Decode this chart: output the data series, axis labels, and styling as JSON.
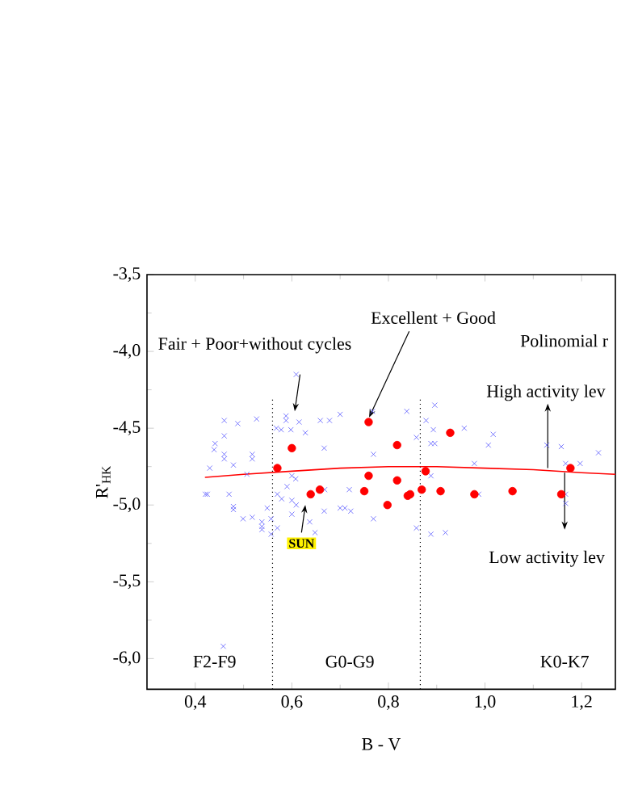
{
  "chart_data": {
    "type": "scatter",
    "xlabel": "B - V",
    "ylabel": "R'$_{HK}$",
    "xlim": [
      0.3,
      1.27
    ],
    "ylim": [
      -6.2,
      -3.5
    ],
    "xticks": [
      {
        "value": 0.4,
        "label": "0,4"
      },
      {
        "value": 0.6,
        "label": "0,6"
      },
      {
        "value": 0.8,
        "label": "0,8"
      },
      {
        "value": 1.0,
        "label": "1,0"
      },
      {
        "value": 1.2,
        "label": "1,2"
      }
    ],
    "yticks": [
      {
        "value": -6.0,
        "label": "-6,0"
      },
      {
        "value": -5.5,
        "label": "-5,5"
      },
      {
        "value": -5.0,
        "label": "-5,0"
      },
      {
        "value": -4.5,
        "label": "-4,5"
      },
      {
        "value": -4.0,
        "label": "-4,0"
      },
      {
        "value": -3.5,
        "label": "-3,5"
      }
    ],
    "grid": false,
    "series": [
      {
        "marker": "cross",
        "color": "#5a5aff",
        "x": [
          0.609,
          0.46,
          0.527,
          0.488,
          0.588,
          0.588,
          0.568,
          0.578,
          0.598,
          0.615,
          0.628,
          0.659,
          0.678,
          0.46,
          0.441,
          0.439,
          0.46,
          0.46,
          0.479,
          0.518,
          0.518,
          0.43,
          0.507,
          0.667,
          0.6,
          0.608,
          0.421,
          0.425,
          0.47,
          0.57,
          0.59,
          0.668,
          0.479,
          0.479,
          0.499,
          0.518,
          0.538,
          0.538,
          0.538,
          0.549,
          0.557,
          0.557,
          0.57,
          0.579,
          0.6,
          0.609,
          0.6,
          0.637,
          0.648,
          0.667,
          0.458,
          0.7,
          0.767,
          0.838,
          0.896,
          0.878,
          0.893,
          0.957,
          1.017,
          0.858,
          0.888,
          0.896,
          1.007,
          0.769,
          0.978,
          1.128,
          1.158,
          1.235,
          1.167,
          1.197,
          0.888,
          0.719,
          0.987,
          1.167,
          0.7,
          0.71,
          0.722,
          0.769,
          0.858,
          0.888,
          0.918,
          1.167
        ],
        "values": [
          -4.15,
          -4.45,
          -4.44,
          -4.47,
          -4.42,
          -4.45,
          -4.5,
          -4.51,
          -4.51,
          -4.46,
          -4.53,
          -4.45,
          -4.45,
          -4.55,
          -4.6,
          -4.64,
          -4.67,
          -4.7,
          -4.74,
          -4.67,
          -4.7,
          -4.76,
          -4.8,
          -4.63,
          -4.81,
          -4.83,
          -4.93,
          -4.93,
          -4.93,
          -4.93,
          -4.88,
          -4.9,
          -5.01,
          -5.03,
          -5.09,
          -5.08,
          -5.11,
          -5.14,
          -5.16,
          -5.02,
          -5.09,
          -5.19,
          -5.15,
          -4.96,
          -4.97,
          -5.0,
          -5.06,
          -5.11,
          -5.18,
          -5.04,
          -5.92,
          -4.41,
          -4.39,
          -4.39,
          -4.35,
          -4.45,
          -4.51,
          -4.5,
          -4.54,
          -4.56,
          -4.6,
          -4.6,
          -4.61,
          -4.67,
          -4.73,
          -4.61,
          -4.62,
          -4.66,
          -4.73,
          -4.73,
          -4.81,
          -4.9,
          -4.93,
          -4.93,
          -5.02,
          -5.02,
          -5.04,
          -5.09,
          -5.15,
          -5.19,
          -5.18,
          -4.99
        ]
      },
      {
        "marker": "circle",
        "color": "#ff0000",
        "x": [
          0.6,
          0.57,
          0.639,
          0.658,
          0.759,
          0.818,
          0.928,
          1.177,
          0.877,
          0.759,
          0.818,
          0.75,
          0.84,
          0.845,
          0.869,
          0.908,
          0.978,
          1.057,
          1.158,
          0.798
        ],
        "values": [
          -4.63,
          -4.76,
          -4.93,
          -4.9,
          -4.46,
          -4.61,
          -4.53,
          -4.76,
          -4.78,
          -4.81,
          -4.84,
          -4.91,
          -4.94,
          -4.93,
          -4.9,
          -4.91,
          -4.93,
          -4.91,
          -4.93,
          -5.0
        ]
      },
      {
        "type": "line",
        "marker": "none",
        "line_style": "solid",
        "color": "#ff0000",
        "x": [
          0.42,
          0.5,
          0.6,
          0.7,
          0.8,
          0.9,
          1.0,
          1.1,
          1.2,
          1.27
        ],
        "values": [
          -4.82,
          -4.8,
          -4.78,
          -4.76,
          -4.75,
          -4.75,
          -4.76,
          -4.77,
          -4.79,
          -4.8
        ]
      }
    ],
    "ref_lines": [
      {
        "axis": "x",
        "value": 0.56,
        "line_style": "dotted",
        "color": "#000000"
      },
      {
        "axis": "x",
        "value": 0.866,
        "line_style": "dotted",
        "color": "#000000"
      }
    ],
    "annotations": [
      {
        "text": "Fair + Poor+without cycles",
        "x": 0.606,
        "y": -4.39
      },
      {
        "text": "Excellent + Good",
        "x": 0.76,
        "y": -4.43
      },
      {
        "text": "SUN",
        "x": 0.628,
        "y": -5.0
      },
      "Polinomial r",
      {
        "text": "High activity lev",
        "x": 1.13,
        "y": -4.76
      },
      "Low activity lev",
      "F2-F9",
      "G0-G9",
      "K0-K7"
    ]
  }
}
